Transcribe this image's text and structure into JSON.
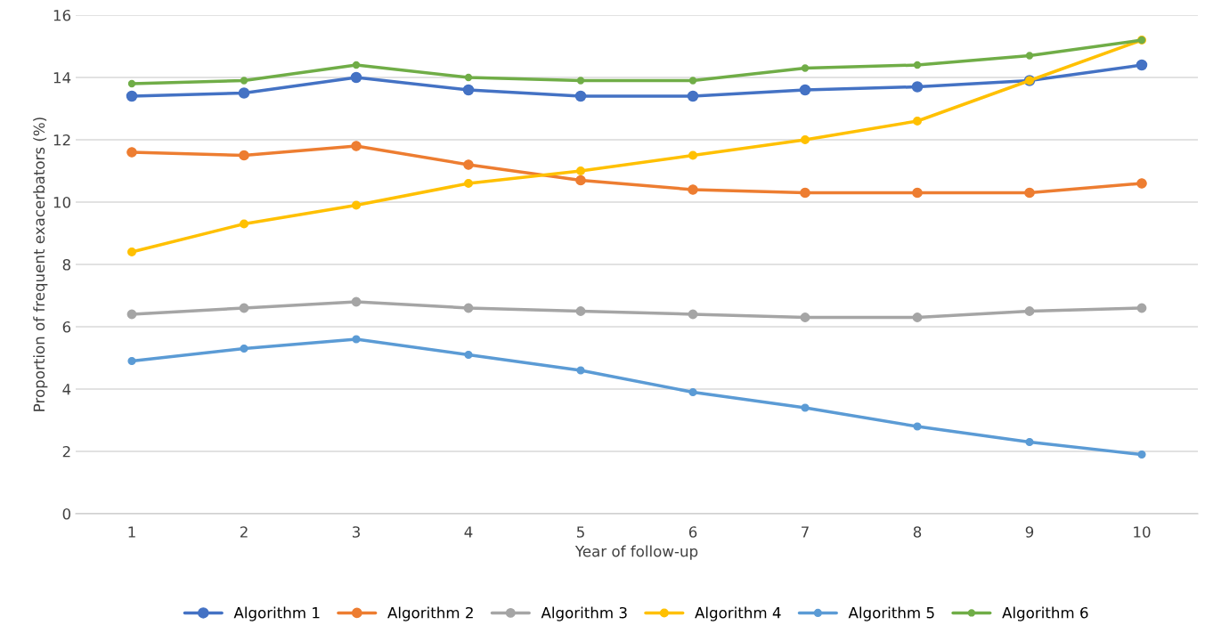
{
  "chart_data": {
    "type": "line",
    "xlabel": "Year of follow-up",
    "ylabel": "Proportion of frequent exacerbators (%)",
    "categories": [
      "1",
      "2",
      "3",
      "4",
      "5",
      "6",
      "7",
      "8",
      "9",
      "10"
    ],
    "ylim": [
      0,
      16
    ],
    "yticks": [
      0,
      2,
      4,
      6,
      8,
      10,
      12,
      14,
      16
    ],
    "grid": "y",
    "legend": "bottom",
    "marker": "circle",
    "line_style": "solid",
    "series": [
      {
        "name": "Algorithm 1",
        "color": "#4472c4",
        "values": [
          13.4,
          13.5,
          14.0,
          13.6,
          13.4,
          13.4,
          13.6,
          13.7,
          13.9,
          14.4
        ]
      },
      {
        "name": "Algorithm 2",
        "color": "#ed7d31",
        "values": [
          11.6,
          11.5,
          11.8,
          11.2,
          10.7,
          10.4,
          10.3,
          10.3,
          10.3,
          10.6
        ]
      },
      {
        "name": "Algorithm 3",
        "color": "#a5a5a5",
        "values": [
          6.4,
          6.6,
          6.8,
          6.6,
          6.5,
          6.4,
          6.3,
          6.3,
          6.5,
          6.6
        ]
      },
      {
        "name": "Algorithm 4",
        "color": "#ffc000",
        "values": [
          8.4,
          9.3,
          9.9,
          10.6,
          11.0,
          11.5,
          12.0,
          12.6,
          13.9,
          15.2
        ]
      },
      {
        "name": "Algorithm 5",
        "color": "#5b9bd5",
        "values": [
          4.9,
          5.3,
          5.6,
          5.1,
          4.6,
          3.9,
          3.4,
          2.8,
          2.3,
          1.9
        ]
      },
      {
        "name": "Algorithm 6",
        "color": "#70ad47",
        "values": [
          13.8,
          13.9,
          14.4,
          14.0,
          13.9,
          13.9,
          14.3,
          14.4,
          14.7,
          15.2
        ]
      }
    ]
  }
}
